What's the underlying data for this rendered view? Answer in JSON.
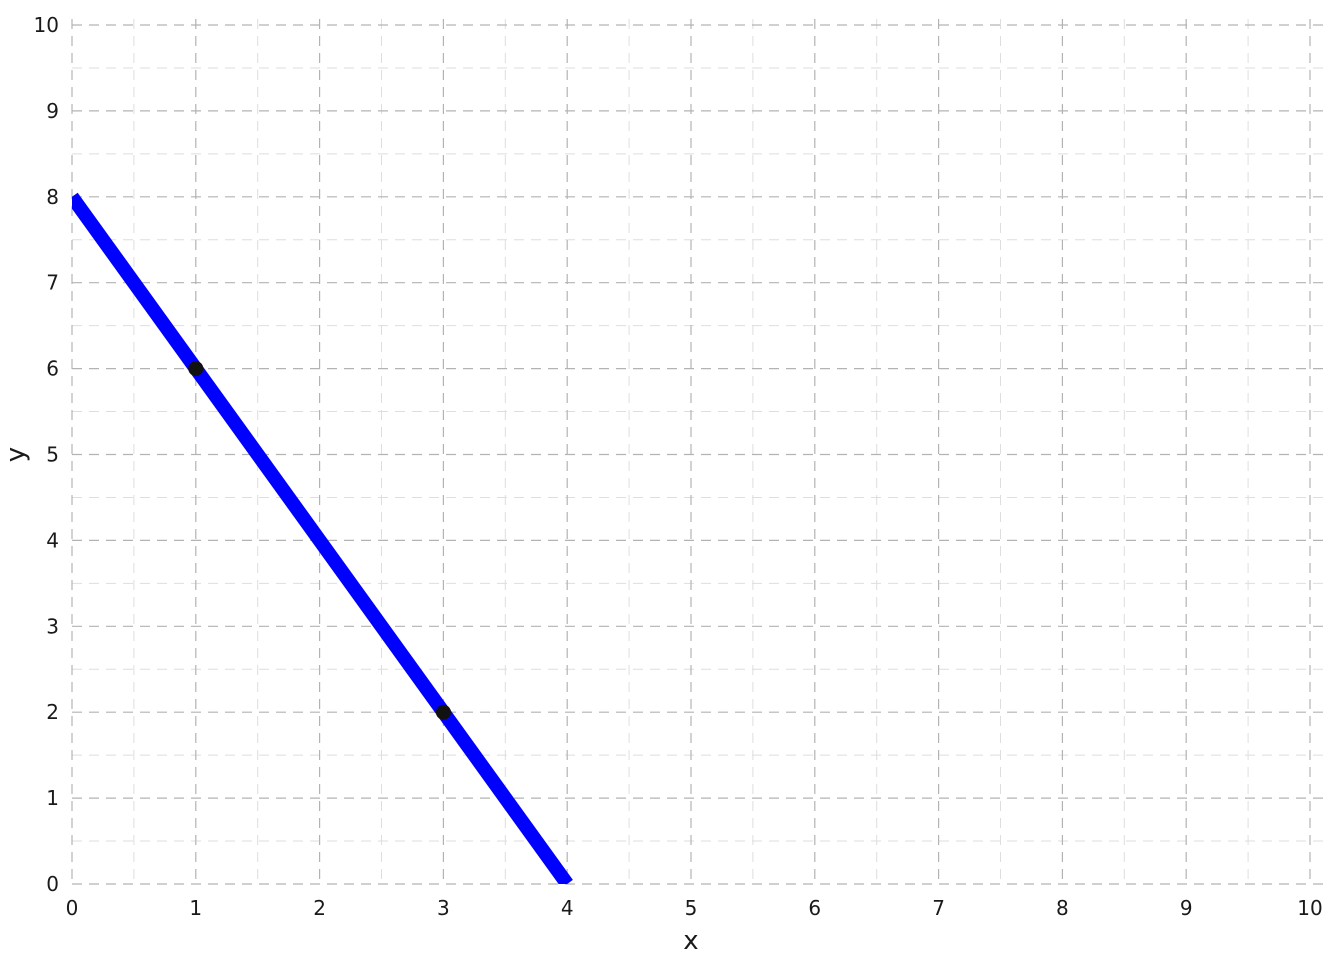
{
  "chart_data": {
    "type": "line",
    "title": "",
    "xlabel": "x",
    "ylabel": "y",
    "xlim": [
      0,
      10
    ],
    "ylim": [
      0,
      10
    ],
    "x_ticks": [
      0,
      1,
      2,
      3,
      4,
      5,
      6,
      7,
      8,
      9,
      10
    ],
    "y_ticks": [
      0,
      1,
      2,
      3,
      4,
      5,
      6,
      7,
      8,
      9,
      10
    ],
    "x_tick_labels": [
      "0",
      "1",
      "2",
      "3",
      "4",
      "5",
      "6",
      "7",
      "8",
      "9",
      "10"
    ],
    "y_tick_labels": [
      "0",
      "1",
      "2",
      "3",
      "4",
      "5",
      "6",
      "7",
      "8",
      "9",
      "10"
    ],
    "grid": true,
    "grid_style": "dashed",
    "minor_grid_step": 0.5,
    "series": [
      {
        "name": "line",
        "type": "line",
        "color": "#0000ff",
        "equation": "y = -2x + 8",
        "x": [
          0,
          4
        ],
        "y": [
          8,
          0
        ]
      },
      {
        "name": "points",
        "type": "scatter",
        "color": "#111111",
        "x": [
          1,
          3
        ],
        "y": [
          6,
          2
        ]
      }
    ],
    "legend": "none"
  }
}
